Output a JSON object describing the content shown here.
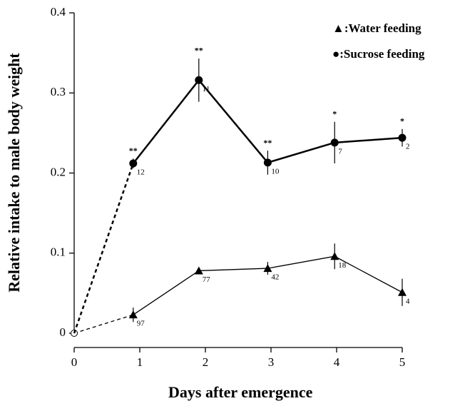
{
  "chart_data": {
    "type": "line",
    "xlabel": "Days after emergence",
    "ylabel": "Relative intake to male body weight",
    "x": [
      0,
      0.9,
      1.9,
      2.95,
      3.97,
      5
    ],
    "xlim": [
      0,
      5
    ],
    "xticks": [
      0,
      1,
      2,
      3,
      4,
      5
    ],
    "ylim": [
      0,
      0.4
    ],
    "yticks": [
      0,
      0.1,
      0.2,
      0.3,
      0.4
    ],
    "series": [
      {
        "name": "▲:Water feeding",
        "color": "#000000",
        "marker": "triangle",
        "values": [
          0,
          0.023,
          0.078,
          0.081,
          0.096,
          0.051
        ],
        "errors": [
          null,
          0.009,
          0.004,
          0.008,
          0.016,
          0.017
        ],
        "n_labels": [
          null,
          "97",
          "77",
          "42",
          "18",
          "4"
        ],
        "significance": [
          null,
          null,
          null,
          null,
          null,
          null
        ]
      },
      {
        "name": "●:Sucrose feeding",
        "color": "#000000",
        "marker": "circle",
        "values": [
          0,
          0.212,
          0.316,
          0.213,
          0.238,
          0.244
        ],
        "errors": [
          null,
          0.006,
          0.027,
          0.015,
          0.026,
          0.011
        ],
        "n_labels": [
          null,
          "12",
          "11",
          "10",
          "7",
          "2"
        ],
        "significance": [
          null,
          "**",
          "**",
          "**",
          "*",
          "*"
        ]
      }
    ]
  }
}
